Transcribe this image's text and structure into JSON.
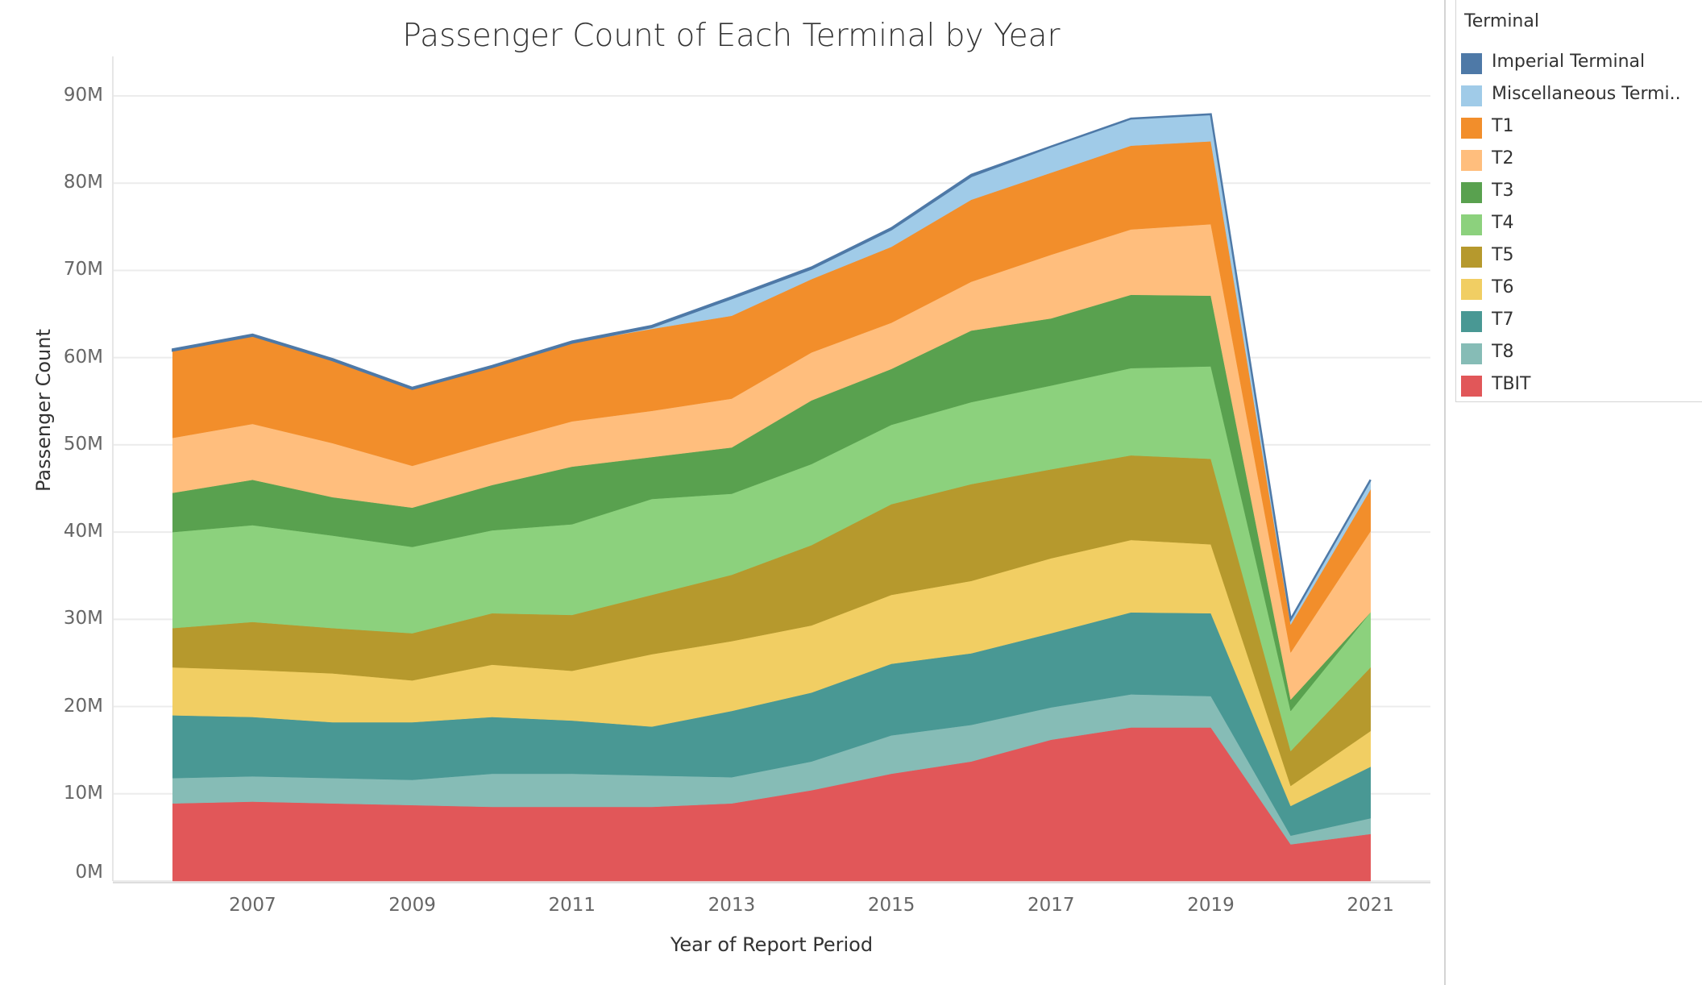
{
  "chart_data": {
    "type": "area",
    "stacked": true,
    "title": "Passenger Count of Each Terminal by Year",
    "xlabel": "Year of Report Period",
    "ylabel": "Passenger Count",
    "x": [
      2006,
      2007,
      2008,
      2009,
      2010,
      2011,
      2012,
      2013,
      2014,
      2015,
      2016,
      2017,
      2018,
      2019,
      2020,
      2021
    ],
    "x_ticks": [
      "2007",
      "2009",
      "2011",
      "2013",
      "2015",
      "2017",
      "2019",
      "2021"
    ],
    "y_ticks": [
      "0M",
      "10M",
      "20M",
      "30M",
      "40M",
      "50M",
      "60M",
      "70M",
      "80M",
      "90M"
    ],
    "ylim": [
      0,
      90000000
    ],
    "grid": true,
    "legend_title": "Terminal",
    "legend_position": "right",
    "series": [
      {
        "name": "TBIT",
        "color": "#e15759",
        "values": [
          8900000,
          9100000,
          8900000,
          8700000,
          8500000,
          8500000,
          8500000,
          8900000,
          10400000,
          12300000,
          13700000,
          16200000,
          17600000,
          17600000,
          4200000,
          5400000
        ]
      },
      {
        "name": "T8",
        "color": "#86bcb6",
        "values": [
          2900000,
          2900000,
          2900000,
          2900000,
          3800000,
          3800000,
          3600000,
          3000000,
          3300000,
          4400000,
          4200000,
          3700000,
          3800000,
          3600000,
          1000000,
          1800000
        ]
      },
      {
        "name": "T7",
        "color": "#499894",
        "values": [
          7200000,
          6800000,
          6400000,
          6600000,
          6500000,
          6100000,
          5600000,
          7600000,
          7900000,
          8200000,
          8200000,
          8500000,
          9400000,
          9500000,
          3400000,
          5900000
        ]
      },
      {
        "name": "T6",
        "color": "#f1ce63",
        "values": [
          5500000,
          5400000,
          5600000,
          4800000,
          6000000,
          5700000,
          8300000,
          8000000,
          7700000,
          7900000,
          8300000,
          8600000,
          8300000,
          7900000,
          2300000,
          4100000
        ]
      },
      {
        "name": "T5",
        "color": "#b6992d",
        "values": [
          4500000,
          5500000,
          5200000,
          5400000,
          5900000,
          6400000,
          6800000,
          7600000,
          9200000,
          10400000,
          11100000,
          10200000,
          9700000,
          9800000,
          4000000,
          7300000
        ]
      },
      {
        "name": "T4",
        "color": "#8cd17d",
        "values": [
          11000000,
          11100000,
          10600000,
          9900000,
          9500000,
          10400000,
          11000000,
          9300000,
          9300000,
          9100000,
          9400000,
          9600000,
          10000000,
          10600000,
          4600000,
          6300000
        ]
      },
      {
        "name": "T3",
        "color": "#59a14f",
        "values": [
          4500000,
          5200000,
          4400000,
          4500000,
          5200000,
          6600000,
          4800000,
          5300000,
          7300000,
          6400000,
          8200000,
          7700000,
          8400000,
          8100000,
          1300000,
          0
        ]
      },
      {
        "name": "T2",
        "color": "#ffbe7d",
        "values": [
          6300000,
          6400000,
          6200000,
          4800000,
          4800000,
          5200000,
          5300000,
          5600000,
          5500000,
          5300000,
          5600000,
          7300000,
          7500000,
          8200000,
          5400000,
          9300000
        ]
      },
      {
        "name": "T1",
        "color": "#f28e2b",
        "values": [
          10000000,
          10100000,
          9500000,
          8800000,
          8700000,
          9000000,
          9400000,
          9500000,
          8400000,
          8700000,
          9400000,
          9400000,
          9600000,
          9500000,
          3200000,
          4800000
        ]
      },
      {
        "name": "Miscellaneous Termi..",
        "color": "#a0cbe8",
        "values": [
          0,
          0,
          0,
          0,
          0,
          0,
          200000,
          2000000,
          1200000,
          2000000,
          2700000,
          3000000,
          3100000,
          3100000,
          600000,
          1100000
        ]
      },
      {
        "name": "Imperial Terminal",
        "color": "#4e79a7",
        "values": [
          150000,
          150000,
          150000,
          150000,
          150000,
          150000,
          150000,
          150000,
          150000,
          150000,
          150000,
          0,
          0,
          0,
          0,
          0
        ]
      }
    ],
    "legend_order": [
      "Imperial Terminal",
      "Miscellaneous Termi..",
      "T1",
      "T2",
      "T3",
      "T4",
      "T5",
      "T6",
      "T7",
      "T8",
      "TBIT"
    ]
  }
}
